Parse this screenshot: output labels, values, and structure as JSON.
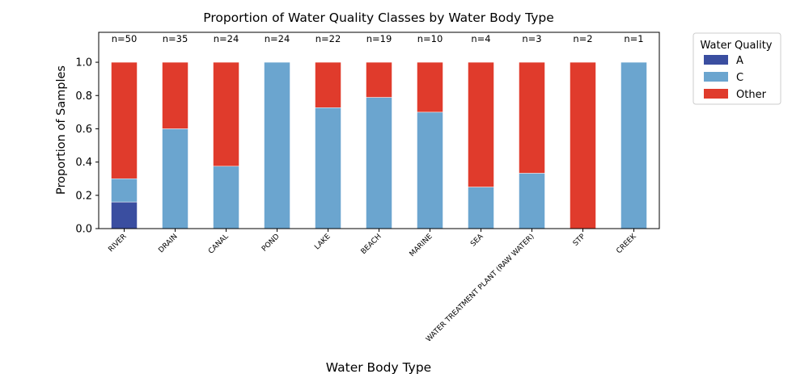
{
  "chart_data": {
    "type": "bar",
    "stacked": true,
    "title": "Proportion of Water Quality Classes by Water Body Type",
    "xlabel": "Water Body Type",
    "ylabel": "Proportion of Samples",
    "ylim": [
      0,
      1.18
    ],
    "yticks": [
      "0.0",
      "0.2",
      "0.4",
      "0.6",
      "0.8",
      "1.0"
    ],
    "categories": [
      "RIVER",
      "DRAIN",
      "CANAL",
      "POND",
      "LAKE",
      "BEACH",
      "MARINE",
      "SEA",
      "WATER TREATMENT PLANT (RAW WATER)",
      "STP",
      "CREEK"
    ],
    "counts": [
      "n=50",
      "n=35",
      "n=24",
      "n=24",
      "n=22",
      "n=19",
      "n=10",
      "n=4",
      "n=3",
      "n=2",
      "n=1"
    ],
    "series": [
      {
        "name": "A",
        "color": "#3a4ea0",
        "values": [
          0.16,
          0,
          0,
          0,
          0,
          0,
          0,
          0,
          0,
          0,
          0
        ]
      },
      {
        "name": "C",
        "color": "#6ba5cf",
        "values": [
          0.14,
          0.6,
          0.375,
          1.0,
          0.727,
          0.789,
          0.7,
          0.25,
          0.333,
          0,
          1.0
        ]
      },
      {
        "name": "Other",
        "color": "#e03b2c",
        "values": [
          0.7,
          0.4,
          0.625,
          0,
          0.273,
          0.211,
          0.3,
          0.75,
          0.667,
          1.0,
          0
        ]
      }
    ],
    "legend": {
      "title": "Water Quality",
      "position": "outside-right"
    },
    "grid": false
  }
}
